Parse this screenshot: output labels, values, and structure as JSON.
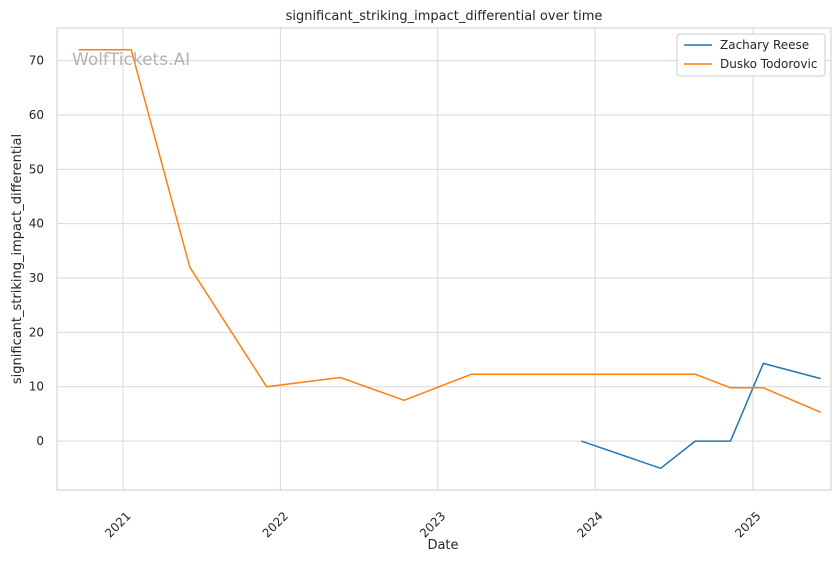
{
  "chart_data": {
    "type": "line",
    "title": "significant_striking_impact_differential over time",
    "xlabel": "Date",
    "ylabel": "significant_striking_impact_differential",
    "watermark": "WolfTickets.AI",
    "x_ticks": [
      "2021",
      "2022",
      "2023",
      "2024",
      "2025"
    ],
    "y_ticks": [
      "0",
      "10",
      "20",
      "30",
      "40",
      "50",
      "60",
      "70"
    ],
    "xlim": [
      "2020-08-01",
      "2025-07-01"
    ],
    "ylim": [
      -9,
      76
    ],
    "grid": true,
    "legend_position": "top-right",
    "series": [
      {
        "name": "Zachary Reese",
        "color": "#1f77b4",
        "points": [
          {
            "date": "2023-11-30",
            "y": 0
          },
          {
            "date": "2024-06-01",
            "y": -5
          },
          {
            "date": "2024-08-20",
            "y": 0
          },
          {
            "date": "2024-11-10",
            "y": 0
          },
          {
            "date": "2025-01-25",
            "y": 14.3
          },
          {
            "date": "2025-06-07",
            "y": 11.5
          }
        ]
      },
      {
        "name": "Dusko Todorovic",
        "color": "#ff7f0e",
        "points": [
          {
            "date": "2020-09-20",
            "y": 72
          },
          {
            "date": "2021-01-20",
            "y": 72
          },
          {
            "date": "2021-06-05",
            "y": 32
          },
          {
            "date": "2021-11-30",
            "y": 10
          },
          {
            "date": "2022-05-20",
            "y": 11.7
          },
          {
            "date": "2022-10-15",
            "y": 7.5
          },
          {
            "date": "2023-03-20",
            "y": 12.3
          },
          {
            "date": "2024-08-20",
            "y": 12.3
          },
          {
            "date": "2024-11-10",
            "y": 9.8
          },
          {
            "date": "2025-01-25",
            "y": 9.8
          },
          {
            "date": "2025-06-07",
            "y": 5.3
          }
        ]
      }
    ]
  }
}
